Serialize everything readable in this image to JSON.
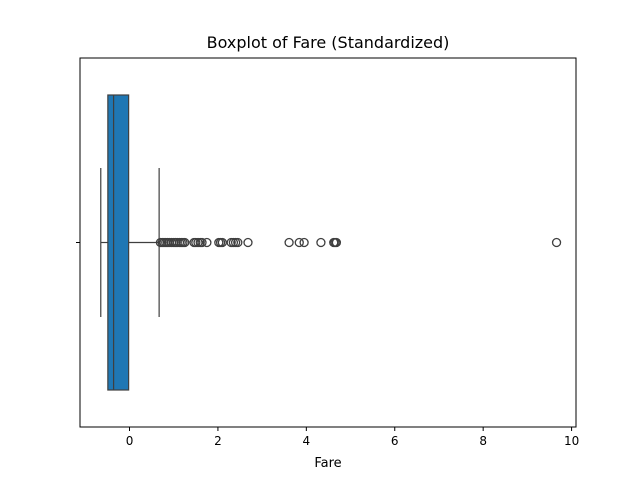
{
  "chart_data": {
    "type": "boxplot",
    "orientation": "horizontal",
    "title": "Boxplot of Fare (Standardized)",
    "xlabel": "Fare",
    "ylabel": "",
    "xlim": [
      -1.12,
      10.1
    ],
    "xticks": [
      0,
      2,
      4,
      6,
      8,
      10
    ],
    "xtick_labels": [
      "0",
      "2",
      "4",
      "6",
      "8",
      "10"
    ],
    "grid": false,
    "box": {
      "whisker_low": -0.65,
      "q1": -0.49,
      "median": -0.36,
      "q3": -0.02,
      "whisker_high": 0.67,
      "color": "#1f77b4",
      "line_color": "#3f3f3f"
    },
    "outliers": [
      0.7,
      0.74,
      0.78,
      0.82,
      0.86,
      0.9,
      0.95,
      1.0,
      1.04,
      1.08,
      1.13,
      1.17,
      1.21,
      1.25,
      1.46,
      1.5,
      1.55,
      1.6,
      1.64,
      1.75,
      2.02,
      2.06,
      2.1,
      2.3,
      2.35,
      2.4,
      2.45,
      2.68,
      3.61,
      3.84,
      3.95,
      4.33,
      4.62,
      4.65,
      4.68,
      9.66
    ]
  }
}
